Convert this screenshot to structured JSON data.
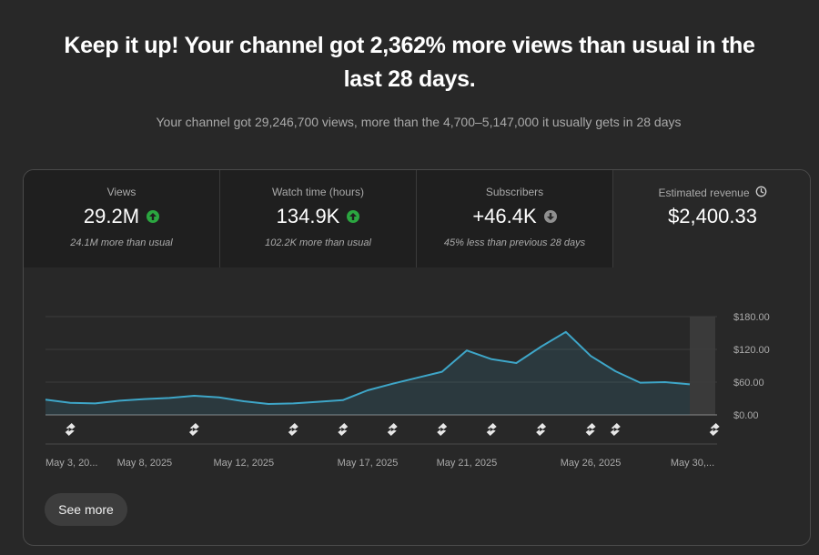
{
  "headline": "Keep it up! Your channel got 2,362% more views than usual in the last 28 days.",
  "subline": "Your channel got 29,246,700 views, more than the 4,700–5,147,000 it usually gets in 28 days",
  "metrics": [
    {
      "label": "Views",
      "value": "29.2M",
      "trend": "up",
      "trend_icon": "arrow-up-icon",
      "note": "24.1M more than usual"
    },
    {
      "label": "Watch time (hours)",
      "value": "134.9K",
      "trend": "up",
      "trend_icon": "arrow-up-icon",
      "note": "102.2K more than usual"
    },
    {
      "label": "Subscribers",
      "value": "+46.4K",
      "trend": "down",
      "trend_icon": "arrow-down-icon",
      "note": "45% less than previous 28 days"
    }
  ],
  "revenue": {
    "label": "Estimated revenue",
    "icon": "clock-icon",
    "value": "$2,400.33"
  },
  "see_more_label": "See more",
  "colors": {
    "line": "#3ea6c8",
    "trend_up": "#2ba640",
    "trend_down": "#909090"
  },
  "chart_data": {
    "type": "area",
    "ylim": [
      0,
      180
    ],
    "yticks": [
      "$0.00",
      "$60.00",
      "$120.00",
      "$180.00"
    ],
    "ytick_values": [
      0,
      60,
      120,
      180
    ],
    "x_labels": [
      "May 3, 20...",
      "May 8, 2025",
      "May 12, 2025",
      "May 17, 2025",
      "May 21, 2025",
      "May 26, 2025",
      "May 30,..."
    ],
    "x_label_days": [
      0,
      4,
      8,
      13,
      17,
      22,
      26
    ],
    "values": [
      28,
      22,
      21,
      26,
      29,
      31,
      35,
      32,
      25,
      20,
      21,
      24,
      27,
      45,
      57,
      68,
      79,
      118,
      102,
      95,
      125,
      152,
      108,
      80,
      59,
      60,
      56
    ],
    "last_period_shaded": true,
    "shorts_markers_days": [
      1,
      6,
      10,
      12,
      14,
      16,
      18,
      20,
      22,
      23,
      27
    ],
    "marker_icon": "shorts-icon",
    "grid": true
  }
}
